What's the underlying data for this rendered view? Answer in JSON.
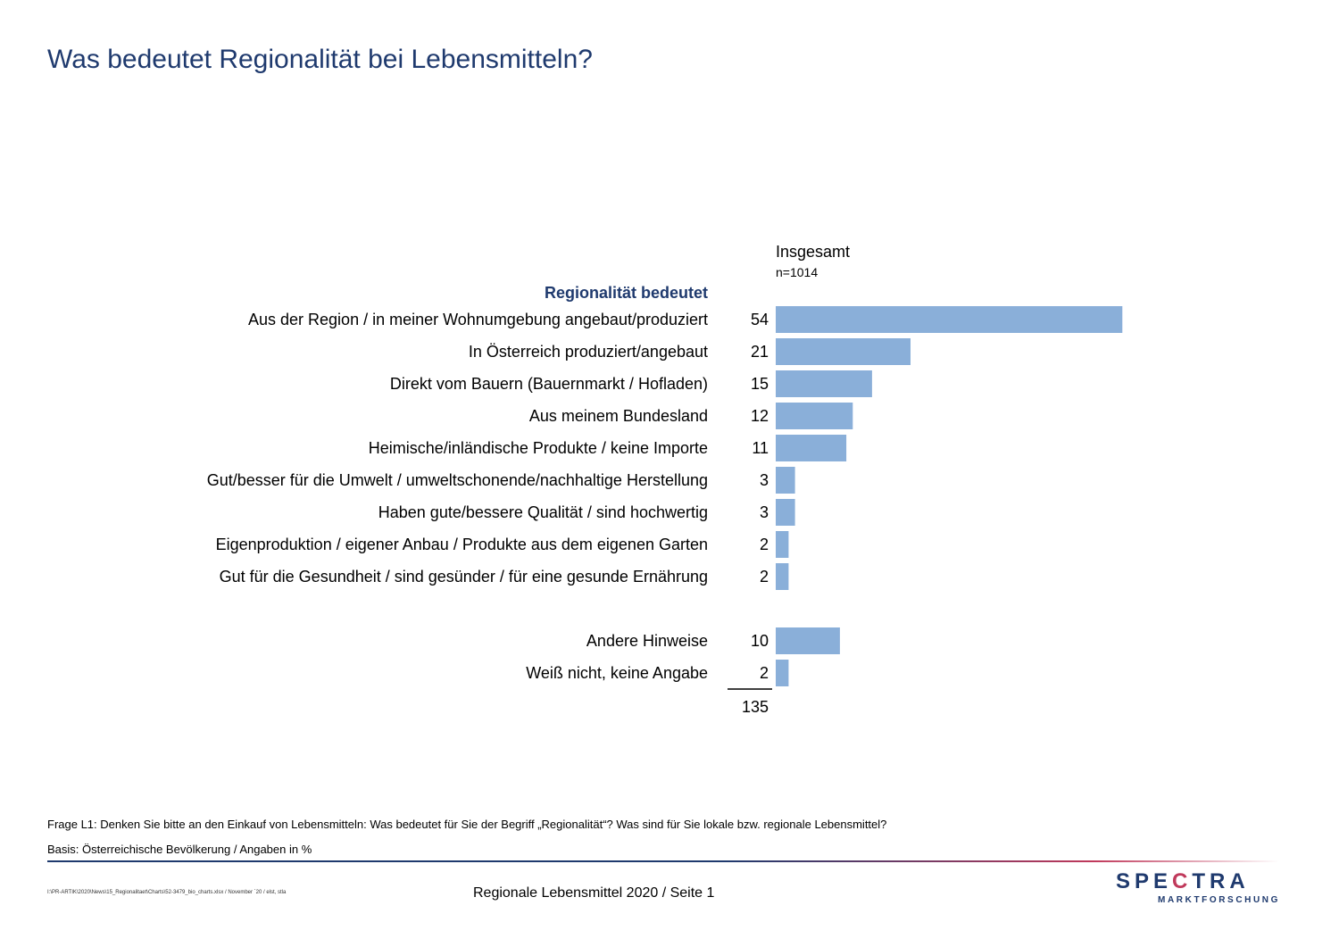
{
  "title": "Was bedeutet Regionalität bei Lebensmitteln?",
  "column": {
    "header": "Insgesamt",
    "n": "n=1014"
  },
  "section_header": "Regionalität bedeutet",
  "colors": {
    "bar": "#8aafd9",
    "title": "#1f3a6e",
    "accent": "#c0395b"
  },
  "chart_data": {
    "type": "bar",
    "orientation": "horizontal",
    "categories": [
      "Aus der Region / in meiner Wohnumgebung angebaut/produziert",
      "In Österreich produziert/angebaut",
      "Direkt vom Bauern (Bauernmarkt / Hofladen)",
      "Aus meinem Bundesland",
      "Heimische/inländische Produkte / keine Importe",
      "Gut/besser für die Umwelt / umweltschonende/nachhaltige Herstellung",
      "Haben gute/bessere Qualität / sind hochwertig",
      "Eigenproduktion / eigener Anbau / Produkte aus dem eigenen Garten",
      "Gut für die Gesundheit / sind gesünder / für eine gesunde Ernährung",
      "Andere Hinweise",
      "Weiß nicht, keine Angabe"
    ],
    "values": [
      54,
      21,
      15,
      12,
      11,
      3,
      3,
      2,
      2,
      10,
      2
    ],
    "total": "135",
    "legend": "none",
    "grid": false
  },
  "footer": {
    "question": "Frage L1: Denken Sie bitte an den Einkauf von Lebensmitteln: Was bedeutet für Sie der Begriff „Regionalität“? Was sind für Sie lokale bzw. regionale Lebensmittel?",
    "basis": "Basis: Österreichische Bevölkerung / Angaben in %",
    "path": "I:\\PR-ARTIK\\2020\\News\\15_Regionalitaet\\Charts\\52-3479_bio_charts.xlsx / November ´20 / elst, stla",
    "page": "Regionale Lebensmittel 2020  /  Seite  1"
  },
  "logo": {
    "word_pre": "SPE",
    "word_mark": "C",
    "word_post": "TRA",
    "sub": "MARKTFORSCHUNG"
  }
}
